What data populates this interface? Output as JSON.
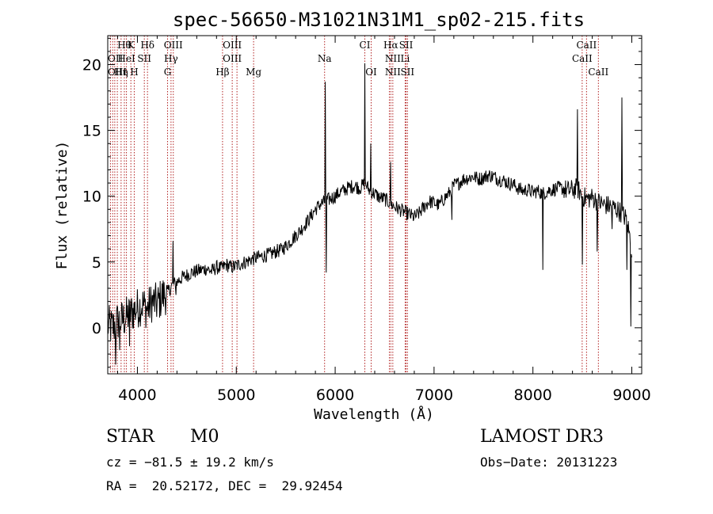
{
  "chart_data": {
    "type": "line",
    "title": "spec-56650-M31021N31M1_sp02-215.fits",
    "xlabel": "Wavelength (Å)",
    "ylabel": "Flux (relative)",
    "xlim": [
      3700,
      9100
    ],
    "ylim": [
      -3.5,
      22.2
    ],
    "xticks": [
      4000,
      5000,
      6000,
      7000,
      8000,
      9000
    ],
    "xtick_labels": [
      "4000",
      "5000",
      "6000",
      "7000",
      "8000",
      "9000"
    ],
    "yticks": [
      0,
      5,
      10,
      15,
      20
    ],
    "ytick_labels": [
      "0",
      "5",
      "10",
      "15",
      "20"
    ],
    "series": [
      {
        "name": "spectrum",
        "color": "#000000",
        "x": [
          3700,
          3750,
          3800,
          3850,
          3900,
          3950,
          4000,
          4050,
          4100,
          4150,
          4200,
          4250,
          4300,
          4350,
          4400,
          4450,
          4500,
          4550,
          4600,
          4650,
          4700,
          4750,
          4800,
          4850,
          4900,
          4950,
          5000,
          5050,
          5100,
          5150,
          5200,
          5250,
          5300,
          5350,
          5400,
          5450,
          5500,
          5550,
          5600,
          5650,
          5700,
          5750,
          5800,
          5850,
          5900,
          5950,
          6000,
          6050,
          6100,
          6150,
          6200,
          6250,
          6300,
          6350,
          6400,
          6450,
          6500,
          6550,
          6600,
          6650,
          6700,
          6750,
          6800,
          6850,
          6900,
          6950,
          7000,
          7050,
          7100,
          7150,
          7200,
          7250,
          7300,
          7350,
          7400,
          7450,
          7500,
          7550,
          7600,
          7650,
          7700,
          7750,
          7800,
          7850,
          7900,
          7950,
          8000,
          8050,
          8100,
          8150,
          8200,
          8250,
          8300,
          8350,
          8400,
          8450,
          8500,
          8550,
          8600,
          8650,
          8700,
          8750,
          8800,
          8850,
          8900,
          8950,
          9000
        ],
        "y": [
          0.2,
          0.0,
          0.5,
          0.6,
          0.9,
          1.2,
          1.5,
          1.8,
          1.4,
          2.0,
          1.8,
          2.4,
          2.6,
          3.2,
          3.5,
          3.8,
          4.0,
          4.2,
          4.3,
          4.4,
          4.5,
          4.3,
          4.6,
          4.5,
          4.8,
          4.6,
          4.7,
          4.9,
          5.0,
          5.2,
          5.3,
          5.4,
          5.5,
          5.6,
          5.8,
          5.9,
          6.2,
          6.6,
          7.0,
          7.4,
          7.9,
          8.4,
          9.0,
          9.4,
          9.6,
          9.8,
          10.0,
          10.3,
          10.5,
          10.7,
          10.8,
          10.6,
          11.0,
          10.4,
          10.2,
          9.9,
          9.8,
          9.5,
          9.2,
          9.0,
          8.8,
          8.6,
          8.4,
          8.7,
          9.2,
          9.6,
          9.5,
          9.3,
          9.8,
          10.2,
          10.8,
          11.0,
          11.3,
          11.4,
          11.5,
          11.3,
          11.4,
          11.6,
          11.5,
          11.3,
          11.2,
          11.0,
          10.9,
          10.6,
          10.4,
          10.5,
          10.3,
          10.4,
          10.2,
          10.4,
          10.5,
          10.6,
          10.6,
          10.4,
          10.5,
          10.6,
          10.0,
          9.8,
          9.9,
          9.6,
          9.4,
          9.3,
          9.2,
          9.0,
          8.7,
          8.2,
          6.0
        ],
        "spikes": [
          [
            3780,
            -2.8
          ],
          [
            3820,
            -1.7
          ],
          [
            3920,
            -1.4
          ],
          [
            4360,
            6.6
          ],
          [
            4390,
            2.5
          ],
          [
            5900,
            18.7
          ],
          [
            5910,
            4.2
          ],
          [
            6300,
            20.1
          ],
          [
            6360,
            14.0
          ],
          [
            6560,
            12.6
          ],
          [
            7180,
            8.2
          ],
          [
            8100,
            4.4
          ],
          [
            8450,
            16.6
          ],
          [
            8500,
            4.8
          ],
          [
            8650,
            5.8
          ],
          [
            8800,
            7.5
          ],
          [
            8900,
            17.5
          ],
          [
            8950,
            4.4
          ],
          [
            8990,
            0.1
          ]
        ]
      }
    ],
    "line_labels": [
      {
        "text": "Hθ",
        "x": 3797,
        "row": 0,
        "anchor": "start"
      },
      {
        "text": "K",
        "x": 3934,
        "row": 0,
        "anchor": "middle"
      },
      {
        "text": "Hδ",
        "x": 4102,
        "row": 0,
        "anchor": "middle"
      },
      {
        "text": "OIII",
        "x": 4363,
        "row": 0,
        "anchor": "middle"
      },
      {
        "text": "OIII",
        "x": 4959,
        "row": 0,
        "anchor": "middle"
      },
      {
        "text": "CI",
        "x": 6300,
        "row": 0,
        "anchor": "middle"
      },
      {
        "text": "Hα",
        "x": 6563,
        "row": 0,
        "anchor": "middle"
      },
      {
        "text": "SII",
        "x": 6717,
        "row": 0,
        "anchor": "middle"
      },
      {
        "text": "CaII",
        "x": 8542,
        "row": 0,
        "anchor": "middle"
      },
      {
        "text": "OII",
        "x": 3700,
        "row": 1,
        "anchor": "start"
      },
      {
        "text": "HeI",
        "x": 3889,
        "row": 1,
        "anchor": "middle"
      },
      {
        "text": "SII",
        "x": 4070,
        "row": 1,
        "anchor": "middle"
      },
      {
        "text": "Hγ",
        "x": 4340,
        "row": 1,
        "anchor": "middle"
      },
      {
        "text": "OIII",
        "x": 4959,
        "row": 1,
        "anchor": "middle"
      },
      {
        "text": "Na",
        "x": 5893,
        "row": 1,
        "anchor": "middle"
      },
      {
        "text": "NII",
        "x": 6583,
        "row": 1,
        "anchor": "middle"
      },
      {
        "text": "Li",
        "x": 6708,
        "row": 1,
        "anchor": "middle"
      },
      {
        "text": "CaII",
        "x": 8498,
        "row": 1,
        "anchor": "middle"
      },
      {
        "text": "OIII",
        "x": 3700,
        "row": 2,
        "anchor": "start"
      },
      {
        "text": "Hη",
        "x": 3835,
        "row": 2,
        "anchor": "middle"
      },
      {
        "text": "H",
        "x": 3968,
        "row": 2,
        "anchor": "middle"
      },
      {
        "text": "G",
        "x": 4305,
        "row": 2,
        "anchor": "middle"
      },
      {
        "text": "Hβ",
        "x": 4861,
        "row": 2,
        "anchor": "middle"
      },
      {
        "text": "Mg",
        "x": 5175,
        "row": 2,
        "anchor": "middle"
      },
      {
        "text": "OI",
        "x": 6364,
        "row": 2,
        "anchor": "middle"
      },
      {
        "text": "NII",
        "x": 6583,
        "row": 2,
        "anchor": "middle"
      },
      {
        "text": "SII",
        "x": 6731,
        "row": 2,
        "anchor": "middle"
      },
      {
        "text": "CaII",
        "x": 8662,
        "row": 2,
        "anchor": "middle"
      }
    ],
    "reference_lines": [
      3727,
      3750,
      3771,
      3797,
      3835,
      3868,
      3889,
      3934,
      3968,
      4070,
      4102,
      4305,
      4340,
      4363,
      4861,
      4959,
      5007,
      5175,
      5893,
      6300,
      6364,
      6548,
      6563,
      6583,
      6708,
      6717,
      6731,
      8498,
      8542,
      8662
    ],
    "reference_line_color": "#b22222"
  },
  "info": {
    "class_label": "STAR",
    "subclass": "M0",
    "survey": "LAMOST DR3",
    "cz": "cz = −81.5 ± 19.2 km/s",
    "obs_date": "Obs−Date: 20131223",
    "radec": "RA =  20.52172, DEC =  29.92454"
  }
}
